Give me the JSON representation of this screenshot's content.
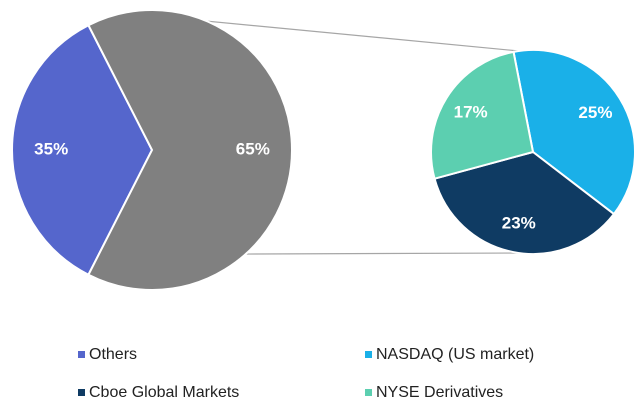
{
  "chart_data": {
    "type": "pie_of_pie",
    "main": {
      "categories": [
        "Others",
        null
      ],
      "values": [
        35,
        65
      ],
      "value_labels": [
        "35%",
        "65%"
      ],
      "colors": [
        "#5566cc",
        "#808080"
      ]
    },
    "secondary": {
      "categories": [
        "NASDAQ (US market)",
        "Cboe Global Markets",
        "NYSE Derivatives"
      ],
      "values": [
        25,
        23,
        17
      ],
      "value_labels": [
        "25%",
        "23%",
        "17%"
      ],
      "colors": [
        "#1ab0e8",
        "#0f3b63",
        "#5ccfb0"
      ]
    },
    "legend": "bottom"
  }
}
